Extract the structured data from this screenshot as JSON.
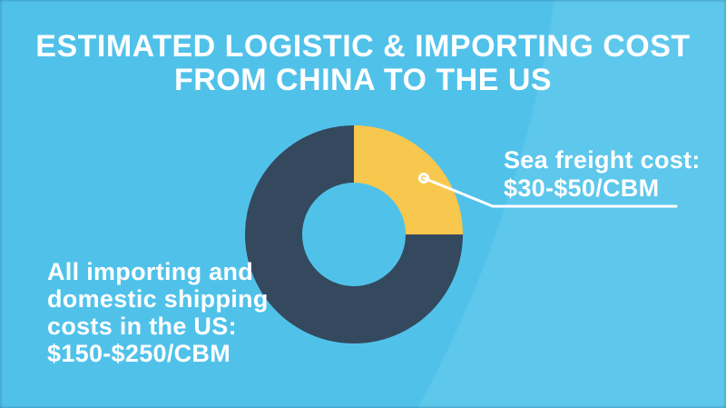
{
  "header": {
    "title_lines": [
      "ESTIMATED LOGISTIC & IMPORTING COST",
      "FROM CHINA TO THE US"
    ]
  },
  "colors": {
    "background": "#50C2EA",
    "background_highlight": "rgba(255,255,255,0.08)",
    "text": "#FFFFFF",
    "sea_freight_segment": "#F8C74D",
    "domestic_segment": "#34495E",
    "leader_line": "#FFFFFF"
  },
  "callouts": {
    "sea_freight": {
      "lines": [
        "Sea freight cost:",
        "$30-$50/CBM"
      ]
    },
    "domestic": {
      "lines": [
        "All importing and",
        "domestic shipping",
        "costs in the US:",
        "$150-$250/CBM"
      ]
    }
  },
  "chart_data": {
    "type": "pie",
    "subtype": "donut",
    "title": "ESTIMATED LOGISTIC & IMPORTING COST FROM CHINA TO THE US",
    "start_angle_deg": 0,
    "direction": "clockwise",
    "legend": "none",
    "segments": [
      {
        "label": "Sea freight cost",
        "value_text": "$30-$50/CBM",
        "value_range_usd_per_cbm": [
          30,
          50
        ],
        "percent": 25,
        "color": "#F8C74D"
      },
      {
        "label": "All importing and domestic shipping costs in the US",
        "value_text": "$150-$250/CBM",
        "value_range_usd_per_cbm": [
          150,
          250
        ],
        "percent": 75,
        "color": "#34495E"
      }
    ]
  }
}
